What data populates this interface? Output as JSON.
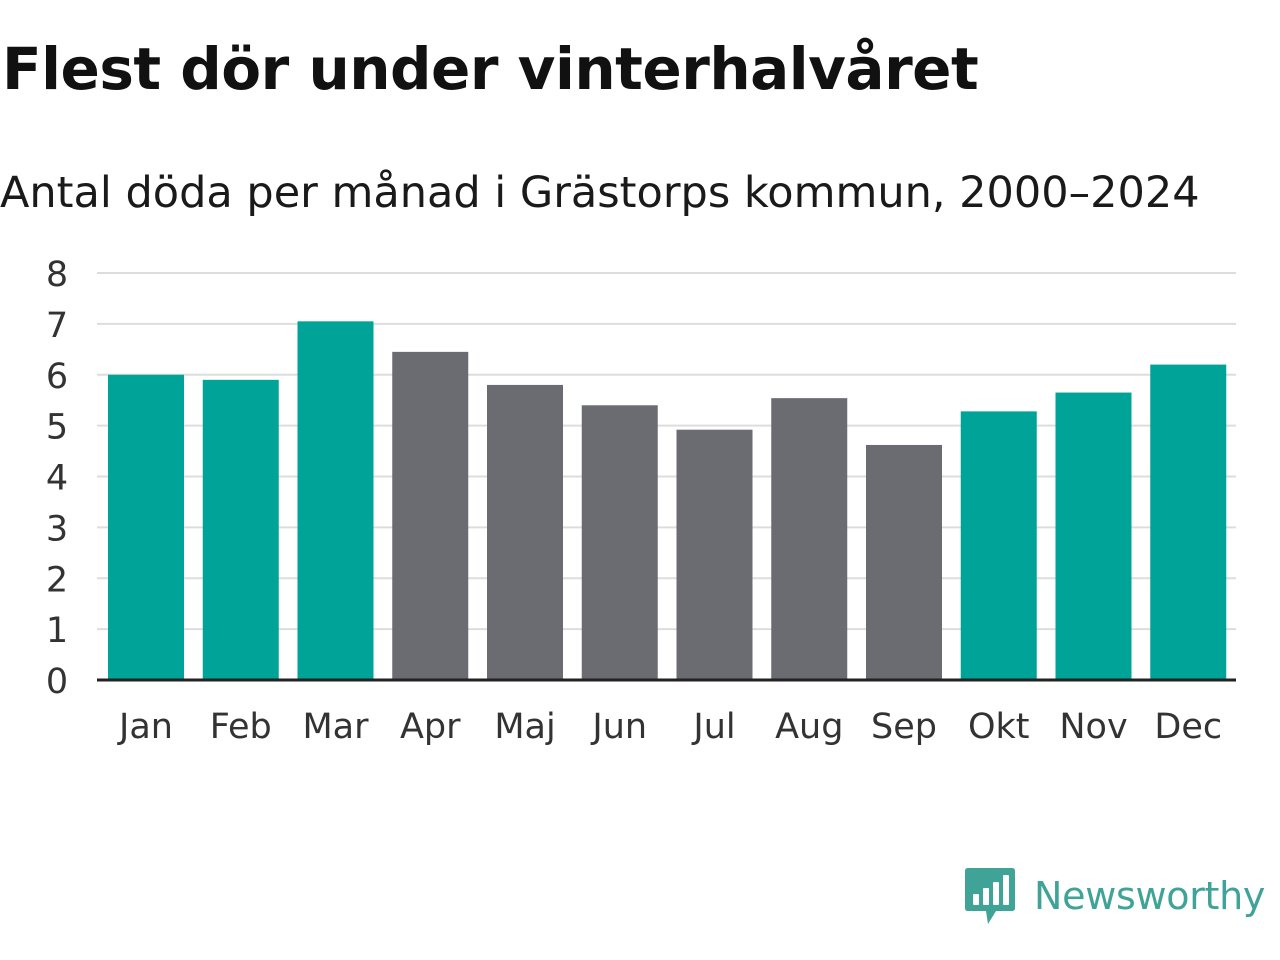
{
  "header": {
    "title": "Flest dör under vinterhalvåret",
    "subtitle": "Antal döda per månad i Grästorps kommun, 2000–2024"
  },
  "chart_data": {
    "type": "bar",
    "title": "Flest dör under vinterhalvåret",
    "subtitle": "Antal döda per månad i Grästorps kommun, 2000–2024",
    "xlabel": "",
    "ylabel": "",
    "ylim": [
      0,
      8
    ],
    "yticks": [
      0,
      1,
      2,
      3,
      4,
      5,
      6,
      7,
      8
    ],
    "grid": true,
    "categories": [
      "Jan",
      "Feb",
      "Mar",
      "Apr",
      "Maj",
      "Jun",
      "Jul",
      "Aug",
      "Sep",
      "Okt",
      "Nov",
      "Dec"
    ],
    "values": [
      6.0,
      5.9,
      7.05,
      6.45,
      5.8,
      5.4,
      4.92,
      5.54,
      4.62,
      5.28,
      5.65,
      6.2
    ],
    "season": [
      "winter",
      "winter",
      "winter",
      "summer",
      "summer",
      "summer",
      "summer",
      "summer",
      "summer",
      "winter",
      "winter",
      "winter"
    ],
    "colors": {
      "winter": "#00a398",
      "summer": "#6b6b72",
      "grid": "#dddddd",
      "axis": "#222222",
      "tick_label": "#333333"
    }
  },
  "branding": {
    "name": "Newsworthy",
    "icon": "newsworthy-logo-icon",
    "color": "#3fa397"
  }
}
